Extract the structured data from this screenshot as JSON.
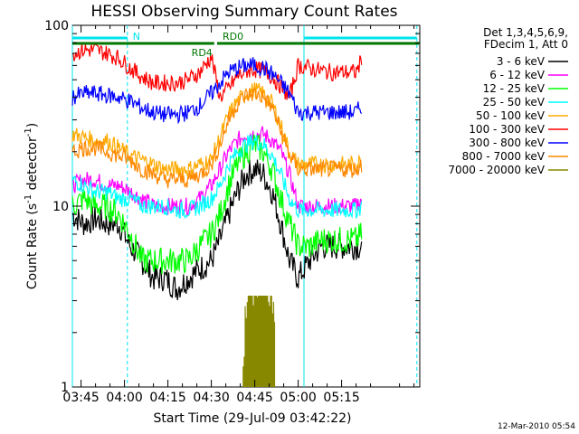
{
  "chart_data": {
    "type": "line",
    "title": "HESSI Observing Summary Count Rates",
    "xlabel": "Start Time (29-Jul-09 03:42:22)",
    "ylabel_main": "Count Rate (s",
    "ylabel_sup1": "-1",
    "ylabel_mid": " detector",
    "ylabel_sup2": "-1",
    "ylabel_end": ")",
    "yscale": "log",
    "ylim": [
      1,
      100
    ],
    "xlim_min": [
      222,
      342
    ],
    "x_ticks": [
      {
        "min": 225,
        "label": "03:45"
      },
      {
        "min": 240,
        "label": "04:00"
      },
      {
        "min": 255,
        "label": "04:15"
      },
      {
        "min": 270,
        "label": "04:30"
      },
      {
        "min": 285,
        "label": "04:45"
      },
      {
        "min": 300,
        "label": "05:00"
      },
      {
        "min": 315,
        "label": "05:15"
      }
    ],
    "y_ticks": [
      {
        "value": 1,
        "label": "1"
      },
      {
        "value": 10,
        "label": "10"
      },
      {
        "value": 100,
        "label": "100"
      }
    ],
    "legend_header": [
      "Det 1,3,4,5,6,9,",
      "FDecim 1, Att 0"
    ],
    "series": [
      {
        "name": "3 - 6 keV",
        "color": "#000000",
        "x": [
          222,
          226,
          230,
          234,
          238,
          242,
          246,
          250,
          254,
          258,
          262,
          266,
          270,
          273,
          276,
          279,
          282,
          285,
          288,
          291,
          294,
          297,
          300,
          304,
          308,
          312,
          316,
          320,
          322
        ],
        "y": [
          9,
          8,
          8.5,
          8,
          8,
          6,
          5,
          4,
          4,
          3.5,
          4,
          4.5,
          5,
          6.5,
          9,
          12,
          15,
          16,
          15,
          12,
          8,
          5,
          4,
          5,
          6,
          6,
          6,
          6,
          6
        ]
      },
      {
        "name": "6 - 12 keV",
        "color": "#ff00ff",
        "x": [
          222,
          226,
          230,
          234,
          238,
          242,
          246,
          250,
          254,
          258,
          262,
          266,
          270,
          273,
          276,
          279,
          282,
          285,
          288,
          291,
          294,
          297,
          300,
          304,
          308,
          312,
          316,
          320,
          322
        ],
        "y": [
          13,
          14,
          14,
          13,
          13,
          12,
          11,
          10,
          10,
          10,
          10,
          11,
          13,
          16,
          20,
          23,
          25,
          25,
          25,
          23,
          20,
          15,
          10,
          10,
          10,
          10,
          10,
          10,
          11
        ]
      },
      {
        "name": "12 - 25 keV",
        "color": "#00ff00",
        "x": [
          222,
          226,
          230,
          234,
          238,
          242,
          246,
          250,
          254,
          258,
          262,
          266,
          270,
          273,
          276,
          279,
          282,
          285,
          288,
          291,
          294,
          297,
          300,
          304,
          308,
          312,
          316,
          320,
          322
        ],
        "y": [
          10,
          11,
          10,
          10,
          9,
          7,
          5,
          5,
          5,
          5,
          5,
          6,
          7,
          9,
          13,
          17,
          20,
          22,
          20,
          16,
          11,
          8,
          6,
          6,
          6.5,
          6.5,
          6.5,
          6.5,
          7
        ]
      },
      {
        "name": "25 - 50 keV",
        "color": "#00ffff",
        "x": [
          222,
          226,
          230,
          234,
          238,
          242,
          246,
          250,
          254,
          258,
          262,
          266,
          270,
          273,
          276,
          279,
          282,
          285,
          288,
          291,
          294,
          297,
          300,
          304,
          308,
          312,
          316,
          320,
          322
        ],
        "y": [
          14,
          13,
          12,
          12,
          11,
          11,
          10,
          10,
          10,
          9.5,
          9.5,
          10,
          11,
          13,
          17,
          20,
          22,
          23,
          22,
          19,
          15,
          11,
          9.5,
          9.5,
          9.5,
          9.5,
          9.5,
          9.5,
          10
        ]
      },
      {
        "name": "50 - 100 keV",
        "color": "#ffaa00",
        "x": [
          222,
          226,
          230,
          234,
          238,
          242,
          246,
          250,
          254,
          258,
          262,
          266,
          270,
          273,
          276,
          279,
          282,
          285,
          288,
          291,
          294,
          297,
          300,
          304,
          308,
          312,
          316,
          320,
          322
        ],
        "y": [
          25,
          24,
          23,
          23,
          21,
          19,
          18,
          17,
          16,
          16,
          16,
          17,
          18,
          24,
          32,
          38,
          42,
          44,
          42,
          37,
          28,
          20,
          17,
          17,
          17,
          17,
          17,
          17,
          18
        ]
      },
      {
        "name": "100 - 300 keV",
        "color": "#ff0000",
        "x": [
          222,
          226,
          230,
          234,
          238,
          242,
          246,
          250,
          254,
          258,
          262,
          266,
          270,
          273,
          276,
          279,
          282,
          285,
          288,
          291,
          294,
          297,
          300,
          304,
          308,
          312,
          316,
          320,
          322
        ],
        "y": [
          70,
          73,
          73,
          70,
          66,
          58,
          52,
          48,
          48,
          48,
          50,
          55,
          67,
          40,
          45,
          52,
          56,
          57,
          56,
          52,
          46,
          40,
          60,
          58,
          56,
          55,
          55,
          55,
          65
        ]
      },
      {
        "name": "300 - 800 keV",
        "color": "#0000ff",
        "x": [
          222,
          226,
          230,
          234,
          238,
          242,
          246,
          250,
          254,
          258,
          262,
          266,
          270,
          273,
          276,
          279,
          282,
          285,
          288,
          291,
          294,
          297,
          300,
          304,
          308,
          312,
          316,
          320,
          322
        ],
        "y": [
          40,
          42,
          42,
          41,
          40,
          38,
          35,
          33,
          32,
          32,
          33,
          36,
          42,
          48,
          55,
          58,
          60,
          60,
          58,
          54,
          48,
          42,
          33,
          33,
          33,
          33,
          33,
          33,
          36
        ]
      },
      {
        "name": "800 - 7000 keV",
        "color": "#ff8800",
        "x": [
          222,
          226,
          230,
          234,
          238,
          242,
          246,
          250,
          254,
          258,
          262,
          266,
          270,
          273,
          276,
          279,
          282,
          285,
          288,
          291,
          294,
          297,
          300,
          304,
          308,
          312,
          316,
          320,
          322
        ],
        "y": [
          20,
          21,
          21,
          20,
          19,
          18,
          16,
          15,
          14,
          14,
          14,
          15,
          17,
          22,
          30,
          37,
          41,
          42,
          40,
          35,
          26,
          19,
          16,
          16,
          16,
          16,
          16,
          16,
          17
        ]
      },
      {
        "name": "7000 - 20000 keV",
        "color": "#888800",
        "x": [
          281,
          282,
          283,
          284,
          285,
          286,
          287,
          288,
          289,
          290,
          291,
          292
        ],
        "y": [
          1.05,
          2.2,
          2.7,
          2.6,
          2.7,
          2.2,
          2.7,
          2.6,
          2.2,
          2.6,
          2.3,
          1.2
        ]
      }
    ],
    "segments": [
      {
        "label": "N",
        "color": "#00e5ee",
        "start_min": 222,
        "end_min": 241
      },
      {
        "label": "",
        "color": "#00e5ee",
        "start_min": 302,
        "end_min": 341
      },
      {
        "label": "RD4",
        "color": "#007700",
        "start_min": 222,
        "end_min": 271
      },
      {
        "label": "RD0",
        "color": "#007700",
        "start_min": 272,
        "end_min": 297
      },
      {
        "label": "",
        "color": "#007700",
        "start_min": 297,
        "end_min": 342
      }
    ],
    "vlines_dashed_min": [
      241,
      341
    ],
    "vlines_solid_min": [
      222,
      302
    ],
    "grid": false,
    "legend_placement": "right"
  },
  "footer": {
    "date": "12-Mar-2010 05:54"
  }
}
